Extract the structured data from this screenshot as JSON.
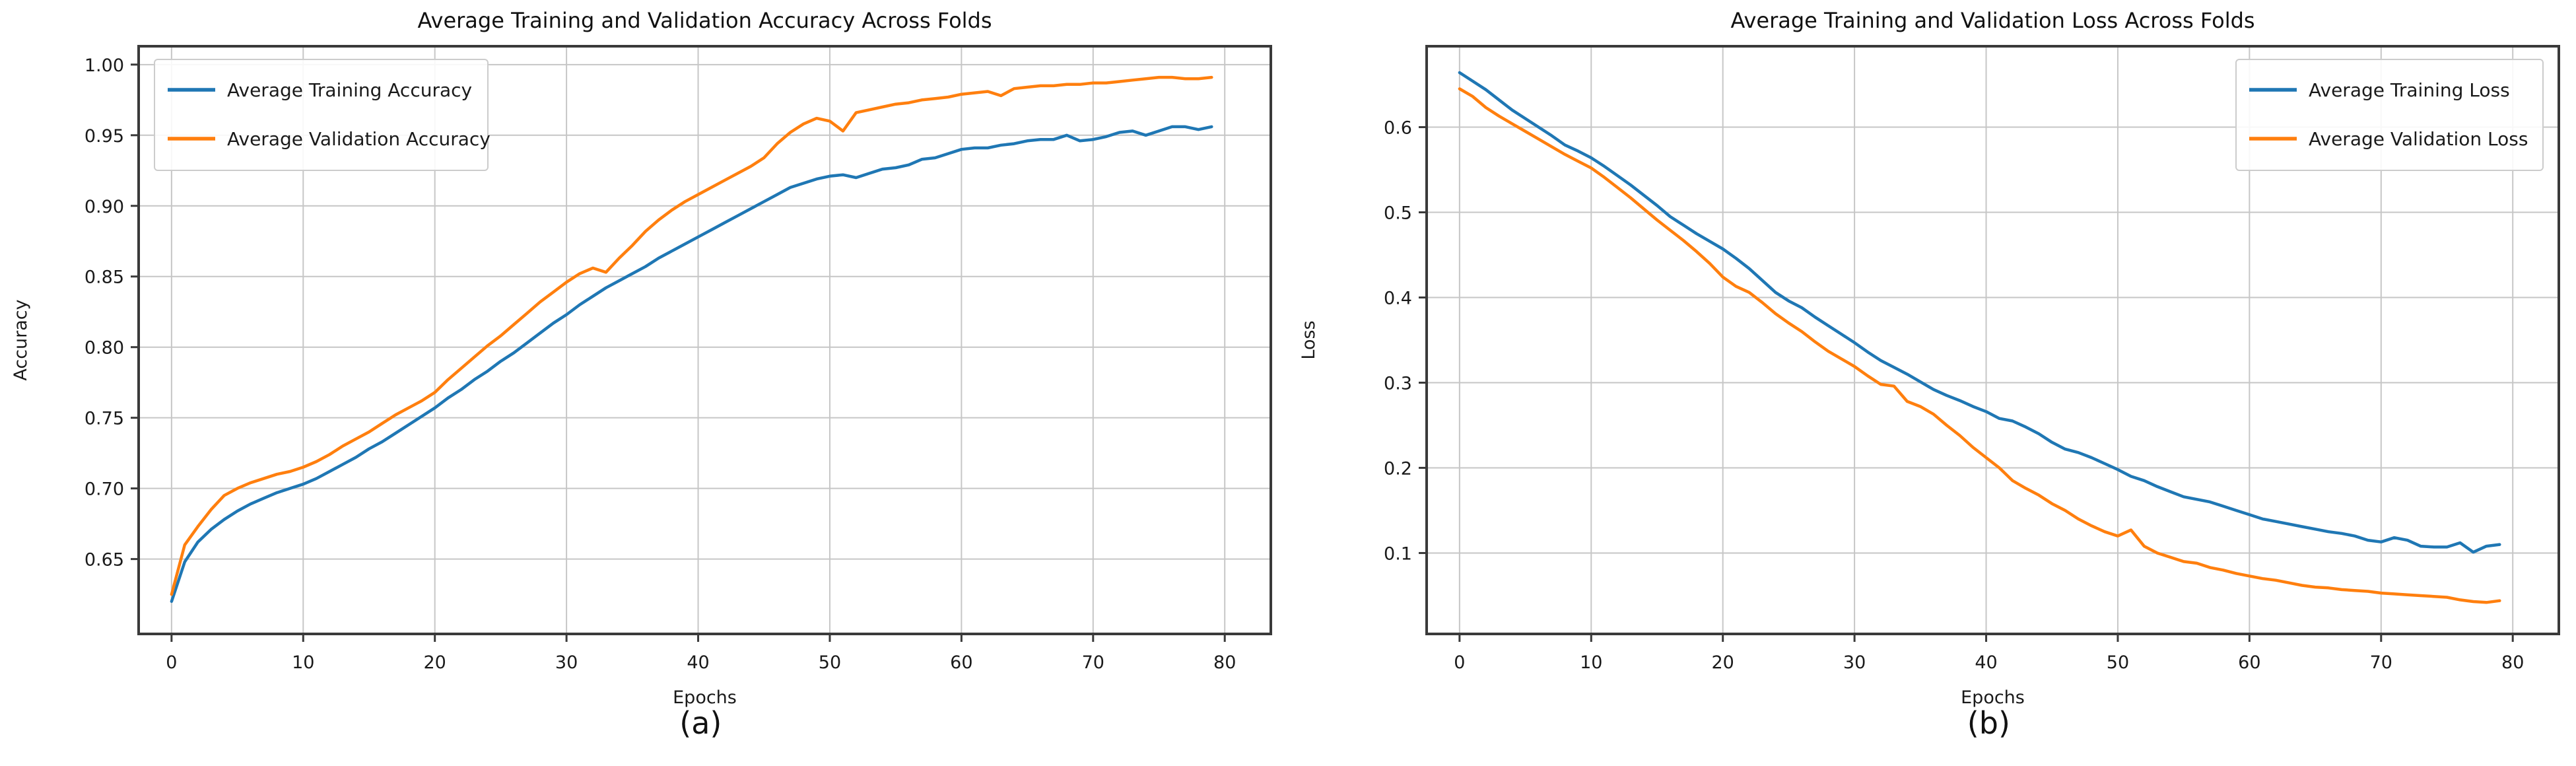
{
  "figure": {
    "background": "#ffffff",
    "accent_blue": "#1f77b4",
    "accent_orange": "#ff7f0e",
    "grid_color": "#c6c6c6",
    "spine_color": "#3a3a3a",
    "text_color": "#1a1a1a"
  },
  "panels": [
    {
      "caption": "(a)"
    },
    {
      "caption": "(b)"
    }
  ],
  "chart_data": [
    {
      "type": "line",
      "title": "Average Training and Validation Accuracy Across Folds",
      "xlabel": "Epochs",
      "ylabel": "Accuracy",
      "caption": "(a)",
      "grid": true,
      "legend_position": "upper-left",
      "xlim": [
        -2.5,
        83.5
      ],
      "ylim": [
        0.597,
        1.013
      ],
      "xtick_values": [
        0,
        10,
        20,
        30,
        40,
        50,
        60,
        70,
        80
      ],
      "xtick_labels": [
        "0",
        "10",
        "20",
        "30",
        "40",
        "50",
        "60",
        "70",
        "80"
      ],
      "ytick_values": [
        0.65,
        0.7,
        0.75,
        0.8,
        0.85,
        0.9,
        0.95,
        1.0
      ],
      "ytick_labels": [
        "0.65",
        "0.70",
        "0.75",
        "0.80",
        "0.85",
        "0.90",
        "0.95",
        "1.00"
      ],
      "series": [
        {
          "name": "Average Training Accuracy",
          "color": "#1f77b4",
          "values": [
            0.62,
            0.648,
            0.662,
            0.671,
            0.678,
            0.684,
            0.689,
            0.693,
            0.697,
            0.7,
            0.703,
            0.707,
            0.712,
            0.717,
            0.722,
            0.728,
            0.733,
            0.739,
            0.745,
            0.751,
            0.757,
            0.764,
            0.77,
            0.777,
            0.783,
            0.79,
            0.796,
            0.803,
            0.81,
            0.817,
            0.823,
            0.83,
            0.836,
            0.842,
            0.847,
            0.852,
            0.857,
            0.863,
            0.868,
            0.873,
            0.878,
            0.883,
            0.888,
            0.893,
            0.898,
            0.903,
            0.908,
            0.913,
            0.916,
            0.919,
            0.921,
            0.922,
            0.92,
            0.923,
            0.926,
            0.927,
            0.929,
            0.933,
            0.934,
            0.937,
            0.94,
            0.941,
            0.941,
            0.943,
            0.944,
            0.946,
            0.947,
            0.947,
            0.95,
            0.946,
            0.947,
            0.949,
            0.952,
            0.953,
            0.95,
            0.953,
            0.956,
            0.956,
            0.954,
            0.956
          ]
        },
        {
          "name": "Average Validation Accuracy",
          "color": "#ff7f0e",
          "values": [
            0.625,
            0.66,
            0.673,
            0.685,
            0.695,
            0.7,
            0.704,
            0.707,
            0.71,
            0.712,
            0.715,
            0.719,
            0.724,
            0.73,
            0.735,
            0.74,
            0.746,
            0.752,
            0.757,
            0.762,
            0.768,
            0.777,
            0.785,
            0.793,
            0.801,
            0.808,
            0.816,
            0.824,
            0.832,
            0.839,
            0.846,
            0.852,
            0.856,
            0.853,
            0.863,
            0.872,
            0.882,
            0.89,
            0.897,
            0.903,
            0.908,
            0.913,
            0.918,
            0.923,
            0.928,
            0.934,
            0.944,
            0.952,
            0.958,
            0.962,
            0.96,
            0.953,
            0.966,
            0.968,
            0.97,
            0.972,
            0.973,
            0.975,
            0.976,
            0.977,
            0.979,
            0.98,
            0.981,
            0.978,
            0.983,
            0.984,
            0.985,
            0.985,
            0.986,
            0.986,
            0.987,
            0.987,
            0.988,
            0.989,
            0.99,
            0.991,
            0.991,
            0.99,
            0.99,
            0.991
          ]
        }
      ]
    },
    {
      "type": "line",
      "title": "Average Training and Validation Loss Across Folds",
      "xlabel": "Epochs",
      "ylabel": "Loss",
      "caption": "(b)",
      "grid": true,
      "legend_position": "upper-right",
      "xlim": [
        -2.5,
        83.5
      ],
      "ylim": [
        0.005,
        0.695
      ],
      "xtick_values": [
        0,
        10,
        20,
        30,
        40,
        50,
        60,
        70,
        80
      ],
      "xtick_labels": [
        "0",
        "10",
        "20",
        "30",
        "40",
        "50",
        "60",
        "70",
        "80"
      ],
      "ytick_values": [
        0.1,
        0.2,
        0.3,
        0.4,
        0.5,
        0.6
      ],
      "ytick_labels": [
        "0.1",
        "0.2",
        "0.3",
        "0.4",
        "0.5",
        "0.6"
      ],
      "series": [
        {
          "name": "Average Training Loss",
          "color": "#1f77b4",
          "values": [
            0.664,
            0.654,
            0.644,
            0.632,
            0.62,
            0.61,
            0.6,
            0.59,
            0.579,
            0.572,
            0.564,
            0.554,
            0.543,
            0.532,
            0.52,
            0.508,
            0.495,
            0.485,
            0.475,
            0.466,
            0.457,
            0.446,
            0.434,
            0.42,
            0.406,
            0.396,
            0.388,
            0.377,
            0.367,
            0.357,
            0.347,
            0.336,
            0.326,
            0.318,
            0.31,
            0.301,
            0.292,
            0.285,
            0.279,
            0.272,
            0.266,
            0.258,
            0.255,
            0.248,
            0.24,
            0.23,
            0.222,
            0.218,
            0.212,
            0.205,
            0.198,
            0.19,
            0.185,
            0.178,
            0.172,
            0.166,
            0.163,
            0.16,
            0.155,
            0.15,
            0.145,
            0.14,
            0.137,
            0.134,
            0.131,
            0.128,
            0.125,
            0.123,
            0.12,
            0.115,
            0.113,
            0.118,
            0.115,
            0.108,
            0.107,
            0.107,
            0.112,
            0.101,
            0.108,
            0.11
          ]
        },
        {
          "name": "Average Validation Loss",
          "color": "#ff7f0e",
          "values": [
            0.645,
            0.636,
            0.623,
            0.613,
            0.604,
            0.595,
            0.586,
            0.577,
            0.568,
            0.56,
            0.552,
            0.541,
            0.529,
            0.517,
            0.504,
            0.491,
            0.479,
            0.467,
            0.454,
            0.44,
            0.424,
            0.413,
            0.406,
            0.394,
            0.381,
            0.37,
            0.36,
            0.348,
            0.337,
            0.328,
            0.319,
            0.308,
            0.298,
            0.296,
            0.278,
            0.272,
            0.263,
            0.25,
            0.238,
            0.224,
            0.212,
            0.2,
            0.185,
            0.176,
            0.168,
            0.158,
            0.15,
            0.14,
            0.132,
            0.125,
            0.12,
            0.127,
            0.108,
            0.1,
            0.095,
            0.09,
            0.088,
            0.083,
            0.08,
            0.076,
            0.073,
            0.07,
            0.068,
            0.065,
            0.062,
            0.06,
            0.059,
            0.057,
            0.056,
            0.055,
            0.053,
            0.052,
            0.051,
            0.05,
            0.049,
            0.048,
            0.045,
            0.043,
            0.042,
            0.044
          ]
        }
      ]
    }
  ]
}
